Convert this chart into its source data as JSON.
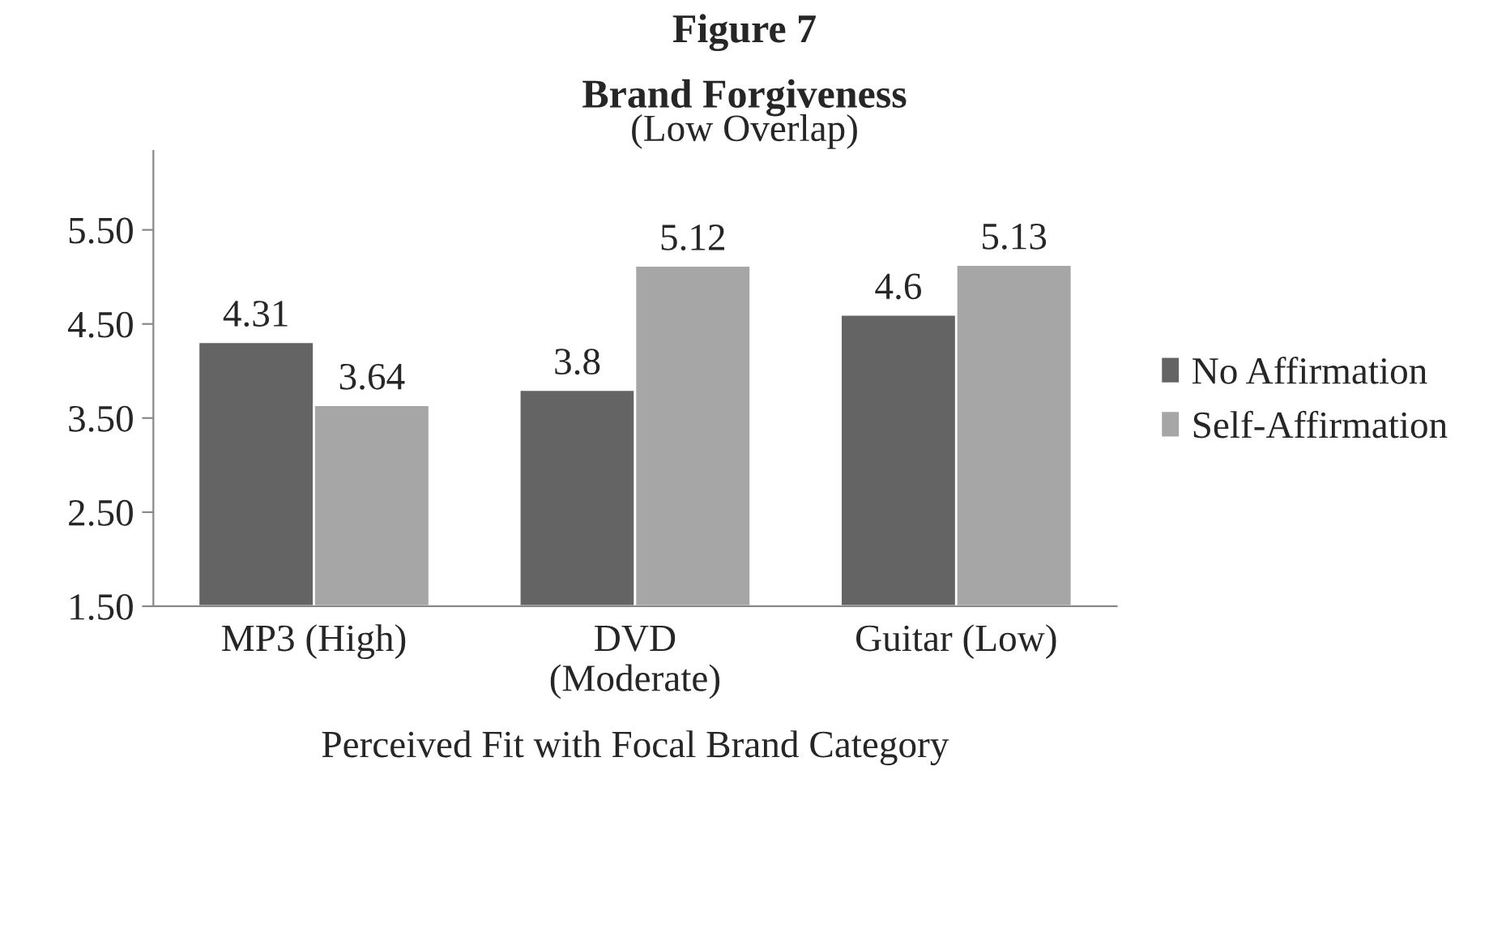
{
  "chart_data": {
    "type": "bar",
    "title": "Figure 7\nBrand Forgiveness",
    "subtitle": "(Low Overlap)",
    "xlabel": "Perceived Fit with Focal Brand Category",
    "categories": [
      "MP3 (High)",
      "DVD\n(Moderate)",
      "Guitar (Low)"
    ],
    "series": [
      {
        "name": "No Affirmation",
        "color": "#646464",
        "values": [
          4.31,
          3.8,
          4.6
        ]
      },
      {
        "name": "Self-Affirmation",
        "color": "#a6a6a6",
        "values": [
          3.64,
          5.12,
          5.13
        ]
      }
    ],
    "ylim": [
      1.5,
      6.34
    ],
    "yticks": [
      {
        "value": 1.5,
        "label": "1.50"
      },
      {
        "value": 2.5,
        "label": "2.50"
      },
      {
        "value": 3.5,
        "label": "3.50"
      },
      {
        "value": 4.5,
        "label": "4.50"
      },
      {
        "value": 5.5,
        "label": "5.50"
      }
    ],
    "data_labels": true,
    "grid": false,
    "legend": "right"
  }
}
